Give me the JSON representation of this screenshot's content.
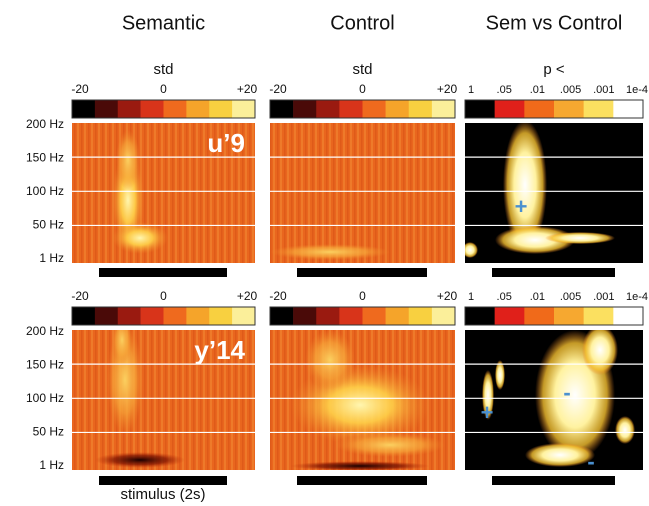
{
  "columns": [
    "Semantic",
    "Control",
    "Sem vs Control"
  ],
  "colorbar_titles": {
    "std": "std",
    "p": "p <"
  },
  "std_ticks": [
    "-20",
    "0",
    "+20"
  ],
  "p_ticks": [
    "1",
    ".05",
    ".01",
    ".005",
    ".001",
    "1e-4"
  ],
  "y_labels": [
    "200 Hz",
    "150 Hz",
    "100 Hz",
    "50 Hz",
    "1 Hz"
  ],
  "rows": [
    {
      "label": "u’9",
      "sig_marks": [
        "+"
      ]
    },
    {
      "label": "y’14",
      "sig_marks": [
        "+",
        "-",
        "-"
      ]
    }
  ],
  "stimulus_label": "stimulus (2s)"
}
